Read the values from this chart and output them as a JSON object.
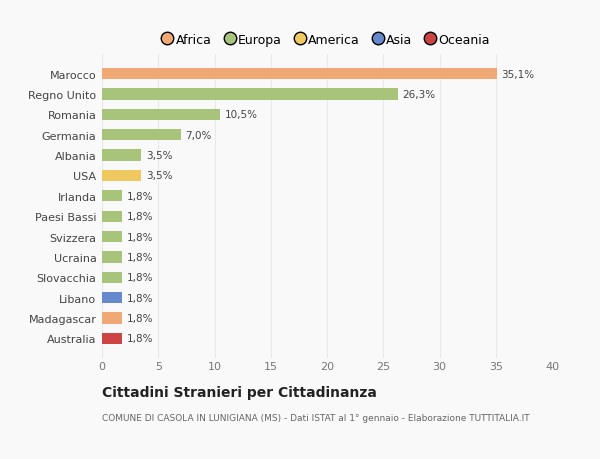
{
  "countries": [
    "Australia",
    "Madagascar",
    "Libano",
    "Slovacchia",
    "Ucraina",
    "Svizzera",
    "Paesi Bassi",
    "Irlanda",
    "USA",
    "Albania",
    "Germania",
    "Romania",
    "Regno Unito",
    "Marocco"
  ],
  "values": [
    1.8,
    1.8,
    1.8,
    1.8,
    1.8,
    1.8,
    1.8,
    1.8,
    3.5,
    3.5,
    7.0,
    10.5,
    26.3,
    35.1
  ],
  "labels": [
    "1,8%",
    "1,8%",
    "1,8%",
    "1,8%",
    "1,8%",
    "1,8%",
    "1,8%",
    "1,8%",
    "3,5%",
    "3,5%",
    "7,0%",
    "10,5%",
    "26,3%",
    "35,1%"
  ],
  "colors": [
    "#cc4444",
    "#f0a875",
    "#6688cc",
    "#a8c47a",
    "#a8c47a",
    "#a8c47a",
    "#a8c47a",
    "#a8c47a",
    "#f0c860",
    "#a8c47a",
    "#a8c47a",
    "#a8c47a",
    "#a8c47a",
    "#f0a875"
  ],
  "continent_colors": {
    "Africa": "#f0a875",
    "Europa": "#a8c47a",
    "America": "#f0c860",
    "Asia": "#6688cc",
    "Oceania": "#cc4444"
  },
  "title": "Cittadini Stranieri per Cittadinanza",
  "subtitle": "COMUNE DI CASOLA IN LUNIGIANA (MS) - Dati ISTAT al 1° gennaio - Elaborazione TUTTITALIA.IT",
  "xlim": [
    0,
    40
  ],
  "xticks": [
    0,
    5,
    10,
    15,
    20,
    25,
    30,
    35,
    40
  ],
  "background_color": "#f9f9f9",
  "grid_color": "#e8e8e8"
}
